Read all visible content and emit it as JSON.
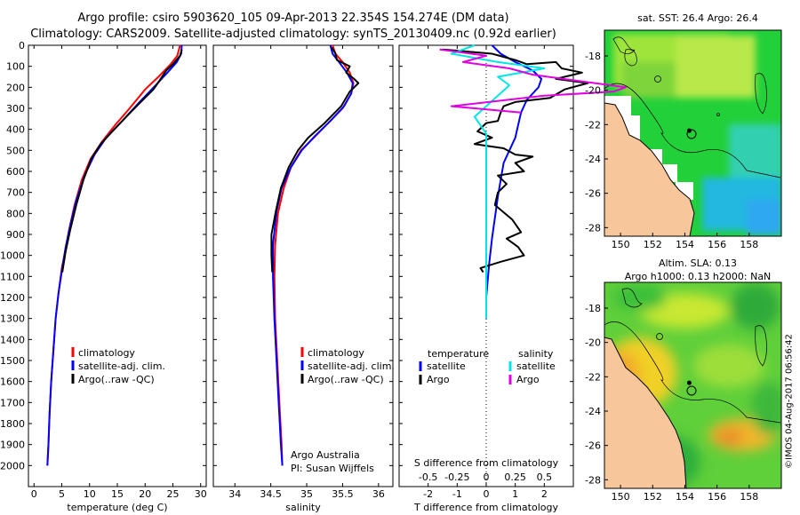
{
  "header": {
    "title_line1": "Argo profile: csiro 5903620_105 09-Apr-2013 22.354S 154.274E (DM data)",
    "title_line2": "Climatology: CARS2009. Satellite-adjusted climatology: synTS_20130409.nc (0.92d earlier)"
  },
  "stamp": "©IMOS 04-Aug-2017 06:56:42",
  "colors": {
    "climatology": "#ff0000",
    "satellite": "#0000ff",
    "argo": "#000000",
    "sat_salinity": "#00e5e5",
    "argo_salinity": "#e000e0",
    "land": "#f7c69a"
  },
  "chart_data": [
    {
      "id": "temperature",
      "type": "line",
      "xlabel": "temperature (deg C)",
      "ylabel": "",
      "xlim": [
        -1,
        31
      ],
      "ylim": [
        2100,
        0
      ],
      "xticks": [
        "0",
        "5",
        "10",
        "15",
        "20",
        "25",
        "30"
      ],
      "yticks": [
        "0",
        "100",
        "200",
        "300",
        "400",
        "500",
        "600",
        "700",
        "800",
        "900",
        "1000",
        "1100",
        "1200",
        "1300",
        "1400",
        "1500",
        "1600",
        "1700",
        "1800",
        "1900",
        "2000"
      ],
      "legend": [
        "climatology",
        "satellite-adj. clim.",
        "Argo(..raw -QC)"
      ],
      "series": [
        {
          "name": "climatology",
          "color": "#ff0000",
          "points": [
            [
              26.3,
              0
            ],
            [
              25.8,
              50
            ],
            [
              24.6,
              90
            ],
            [
              22.4,
              150
            ],
            [
              20,
              210
            ],
            [
              17.2,
              300
            ],
            [
              14.6,
              380
            ],
            [
              12.2,
              460
            ],
            [
              10.2,
              540
            ],
            [
              8.6,
              640
            ],
            [
              7.3,
              760
            ],
            [
              6.3,
              880
            ],
            [
              5.6,
              980
            ],
            [
              5,
              1060
            ],
            [
              4.4,
              1180
            ],
            [
              3.9,
              1300
            ],
            [
              3.5,
              1450
            ],
            [
              3.1,
              1600
            ],
            [
              2.8,
              1750
            ],
            [
              2.6,
              1900
            ],
            [
              2.4,
              2000
            ]
          ]
        },
        {
          "name": "satellite-adj. clim.",
          "color": "#0000ff",
          "points": [
            [
              26.6,
              0
            ],
            [
              26.5,
              40
            ],
            [
              25.7,
              80
            ],
            [
              24,
              130
            ],
            [
              21.9,
              190
            ],
            [
              19,
              270
            ],
            [
              15.9,
              360
            ],
            [
              13,
              440
            ],
            [
              10.9,
              520
            ],
            [
              9.1,
              620
            ],
            [
              7.6,
              740
            ],
            [
              6.5,
              860
            ],
            [
              5.7,
              960
            ],
            [
              5.1,
              1060
            ],
            [
              4.4,
              1180
            ],
            [
              3.9,
              1300
            ],
            [
              3.5,
              1450
            ],
            [
              3.1,
              1600
            ],
            [
              2.8,
              1750
            ],
            [
              2.6,
              1900
            ],
            [
              2.4,
              2000
            ]
          ]
        },
        {
          "name": "Argo(..raw -QC)",
          "color": "#000000",
          "points": [
            [
              26.6,
              20
            ],
            [
              26.3,
              50
            ],
            [
              25,
              90
            ],
            [
              23.8,
              120
            ],
            [
              22.3,
              180
            ],
            [
              21.5,
              210
            ],
            [
              19.2,
              270
            ],
            [
              16.6,
              340
            ],
            [
              14.1,
              410
            ],
            [
              12,
              470
            ],
            [
              10.3,
              540
            ],
            [
              8.9,
              640
            ],
            [
              7.6,
              760
            ],
            [
              6.5,
              880
            ],
            [
              5.7,
              980
            ],
            [
              5.1,
              1080
            ]
          ]
        }
      ]
    },
    {
      "id": "salinity",
      "type": "line",
      "xlabel": "salinity",
      "ylabel": "",
      "xlim": [
        33.7,
        36.2
      ],
      "ylim": [
        2100,
        0
      ],
      "xticks": [
        "34",
        "34.5",
        "35",
        "35.5",
        "36"
      ],
      "legend": [
        "climatology",
        "satellite-adj. clim.",
        "Argo(..raw -QC)"
      ],
      "annotation": [
        "Argo Australia",
        "PI: Susan Wijffels"
      ],
      "series": [
        {
          "name": "climatology",
          "color": "#ff0000",
          "points": [
            [
              35.36,
              0
            ],
            [
              35.4,
              40
            ],
            [
              35.5,
              80
            ],
            [
              35.6,
              130
            ],
            [
              35.65,
              180
            ],
            [
              35.62,
              230
            ],
            [
              35.5,
              300
            ],
            [
              35.3,
              370
            ],
            [
              35.1,
              440
            ],
            [
              34.92,
              500
            ],
            [
              34.78,
              580
            ],
            [
              34.68,
              680
            ],
            [
              34.6,
              800
            ],
            [
              34.56,
              950
            ],
            [
              34.55,
              1100
            ],
            [
              34.56,
              1300
            ],
            [
              34.59,
              1500
            ],
            [
              34.62,
              1700
            ],
            [
              34.65,
              1900
            ],
            [
              34.66,
              2000
            ]
          ]
        },
        {
          "name": "satellite-adj. clim.",
          "color": "#0000ff",
          "points": [
            [
              35.33,
              0
            ],
            [
              35.36,
              40
            ],
            [
              35.45,
              80
            ],
            [
              35.56,
              130
            ],
            [
              35.64,
              180
            ],
            [
              35.62,
              230
            ],
            [
              35.52,
              290
            ],
            [
              35.33,
              360
            ],
            [
              35.12,
              430
            ],
            [
              34.93,
              500
            ],
            [
              34.78,
              580
            ],
            [
              34.65,
              680
            ],
            [
              34.58,
              790
            ],
            [
              34.53,
              950
            ],
            [
              34.53,
              1100
            ],
            [
              34.55,
              1300
            ],
            [
              34.58,
              1500
            ],
            [
              34.61,
              1700
            ],
            [
              34.64,
              1900
            ],
            [
              34.66,
              2000
            ]
          ]
        },
        {
          "name": "Argo(..raw -QC)",
          "color": "#000000",
          "points": [
            [
              35.35,
              10
            ],
            [
              35.4,
              40
            ],
            [
              35.42,
              70
            ],
            [
              35.6,
              100
            ],
            [
              35.55,
              130
            ],
            [
              35.66,
              160
            ],
            [
              35.72,
              180
            ],
            [
              35.6,
              220
            ],
            [
              35.48,
              290
            ],
            [
              35.25,
              370
            ],
            [
              35.02,
              440
            ],
            [
              34.88,
              500
            ],
            [
              34.75,
              580
            ],
            [
              34.64,
              680
            ],
            [
              34.57,
              790
            ],
            [
              34.51,
              900
            ],
            [
              34.51,
              1000
            ],
            [
              34.52,
              1080
            ]
          ]
        }
      ]
    },
    {
      "id": "difference",
      "type": "line",
      "xlabel": "T difference from climatology",
      "xlabel_top": "S difference from climatology",
      "xlim": [
        -3,
        3
      ],
      "ylim": [
        2100,
        0
      ],
      "xticks": [
        "-2",
        "-1",
        "0",
        "1",
        "2"
      ],
      "sticks": [
        "-0.5",
        "-0.25",
        "0",
        "0.25",
        "0.5"
      ],
      "legend_temperature": [
        "temperature",
        "satellite",
        "Argo"
      ],
      "legend_salinity": [
        "salinity",
        "satellite",
        "Argo"
      ],
      "series": [
        {
          "name": "temperature satellite",
          "color": "#0000ff",
          "points": [
            [
              0.2,
              0
            ],
            [
              0.5,
              40
            ],
            [
              1,
              80
            ],
            [
              1.6,
              120
            ],
            [
              1.9,
              160
            ],
            [
              1.8,
              200
            ],
            [
              1.4,
              260
            ],
            [
              1.2,
              320
            ],
            [
              1.1,
              380
            ],
            [
              1,
              440
            ],
            [
              0.8,
              500
            ],
            [
              0.6,
              560
            ],
            [
              0.5,
              640
            ],
            [
              0.4,
              720
            ],
            [
              0.3,
              820
            ],
            [
              0.2,
              920
            ],
            [
              0.1,
              1040
            ],
            [
              0,
              1200
            ],
            [
              0,
              1300
            ]
          ]
        },
        {
          "name": "temperature Argo",
          "color": "#000000",
          "points": [
            [
              -1.5,
              20
            ],
            [
              0.2,
              40
            ],
            [
              1,
              70
            ],
            [
              1.4,
              90
            ],
            [
              2.4,
              80
            ],
            [
              2.6,
              110
            ],
            [
              3.3,
              130
            ],
            [
              2.4,
              160
            ],
            [
              3.5,
              180
            ],
            [
              2.7,
              210
            ],
            [
              2.2,
              250
            ],
            [
              1,
              270
            ],
            [
              0.6,
              290
            ],
            [
              0.5,
              320
            ],
            [
              0.4,
              360
            ],
            [
              0,
              370
            ],
            [
              -0.3,
              410
            ],
            [
              0.2,
              440
            ],
            [
              -0.4,
              470
            ],
            [
              0.6,
              490
            ],
            [
              1,
              520
            ],
            [
              1.6,
              530
            ],
            [
              1,
              560
            ],
            [
              1.3,
              600
            ],
            [
              0.4,
              620
            ],
            [
              0.7,
              660
            ],
            [
              0.4,
              700
            ],
            [
              0.3,
              760
            ],
            [
              0.9,
              830
            ],
            [
              1.2,
              890
            ],
            [
              0.7,
              920
            ],
            [
              1.1,
              960
            ],
            [
              1.3,
              1000
            ],
            [
              0.5,
              1030
            ],
            [
              -0.2,
              1060
            ],
            [
              -0.1,
              1080
            ]
          ]
        },
        {
          "name": "salinity satellite",
          "color": "#00e5e5",
          "points": [
            [
              -0.1,
              0
            ],
            [
              -0.3,
              40
            ],
            [
              0.1,
              80
            ],
            [
              0.5,
              110
            ],
            [
              0.1,
              150
            ],
            [
              0.2,
              190
            ],
            [
              0.1,
              240
            ],
            [
              0,
              290
            ],
            [
              -0.1,
              340
            ],
            [
              0,
              420
            ],
            [
              0,
              520
            ],
            [
              0,
              640
            ],
            [
              0,
              800
            ],
            [
              0,
              1000
            ],
            [
              0,
              1200
            ],
            [
              0,
              1300
            ]
          ]
        },
        {
          "name": "salinity Argo",
          "color": "#e000e0",
          "points": [
            [
              -0.4,
              20
            ],
            [
              0,
              50
            ],
            [
              -0.2,
              80
            ],
            [
              0.2,
              110
            ],
            [
              0.4,
              140
            ],
            [
              0.8,
              170
            ],
            [
              1.2,
              200
            ],
            [
              1.1,
              220
            ],
            [
              0.5,
              240
            ],
            [
              -0.3,
              290
            ],
            [
              0.3,
              320
            ]
          ]
        }
      ]
    },
    {
      "id": "sst-map",
      "type": "heatmap",
      "title": "sat. SST: 26.4 Argo: 26.4",
      "xlim": [
        149,
        160
      ],
      "ylim": [
        -28.5,
        -16.5
      ],
      "xticks": [
        "150",
        "152",
        "154",
        "156",
        "158"
      ],
      "yticks": [
        "-18",
        "-20",
        "-22",
        "-24",
        "-26",
        "-28"
      ],
      "argo_position": [
        154.274,
        -22.354
      ]
    },
    {
      "id": "sla-map",
      "type": "heatmap",
      "title_line1": "Altim. SLA: 0.13",
      "title_line2": "Argo h1000: 0.13 h2000: NaN",
      "xlim": [
        149,
        160
      ],
      "ylim": [
        -28.5,
        -16.5
      ],
      "xticks": [
        "150",
        "152",
        "154",
        "156",
        "158"
      ],
      "yticks": [
        "-18",
        "-20",
        "-22",
        "-24",
        "-26",
        "-28"
      ],
      "argo_position": [
        154.274,
        -22.354
      ]
    }
  ]
}
